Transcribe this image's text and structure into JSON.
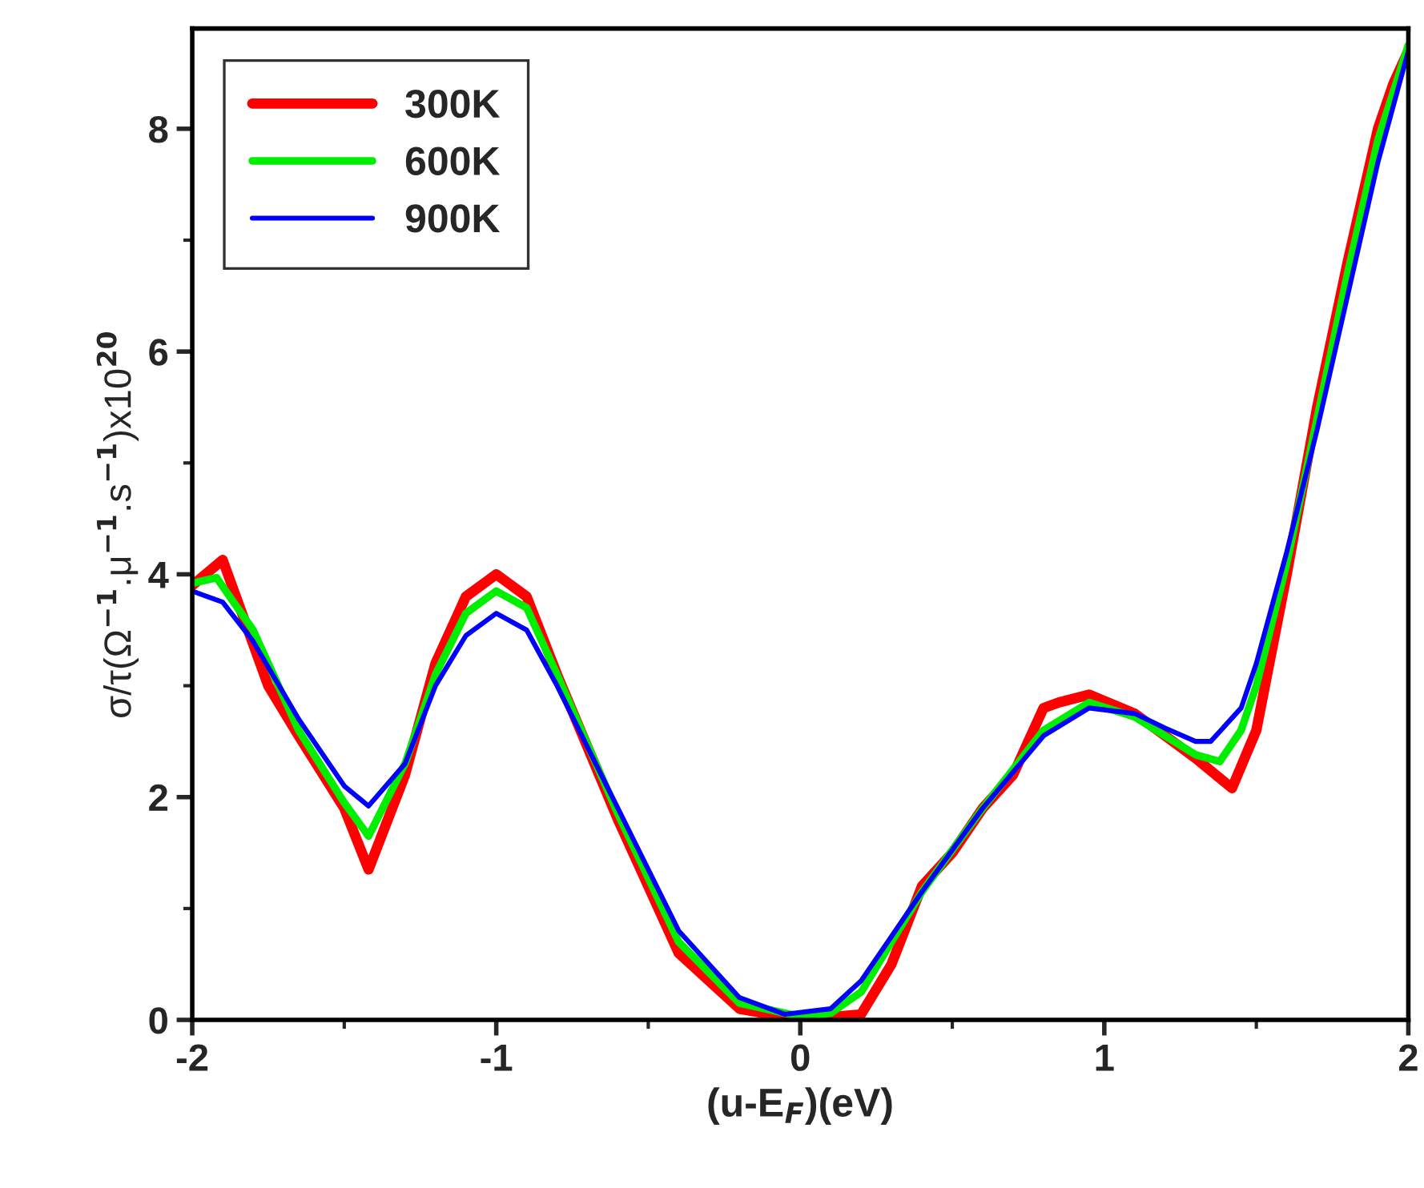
{
  "chart_data": {
    "type": "line",
    "xlabel": "(u-E$_{F}$)(eV)",
    "ylabel": "σ/τ(Ω$^{−1}$.μ$^{−1}$.s$^{−1}$)x10$^{20}$",
    "xlim": [
      -2,
      2
    ],
    "ylim": [
      0,
      8.9
    ],
    "xticks": [
      -2,
      -1,
      0,
      1,
      2
    ],
    "yticks": [
      0,
      2,
      4,
      6,
      8
    ],
    "legend": "top left",
    "grid": false,
    "line_style": "solid",
    "marker": "none",
    "series": [
      {
        "name": "300K",
        "color": "#ff0000",
        "x": [
          -2,
          -1.9,
          -1.75,
          -1.65,
          -1.5,
          -1.42,
          -1.3,
          -1.2,
          -1.1,
          -1.0,
          -0.9,
          -0.8,
          -0.6,
          -0.4,
          -0.2,
          0,
          0.2,
          0.3,
          0.4,
          0.5,
          0.6,
          0.7,
          0.8,
          0.85,
          0.95,
          1.1,
          1.2,
          1.3,
          1.42,
          1.5,
          1.6,
          1.7,
          1.8,
          1.9,
          1.95,
          2.0
        ],
        "values": [
          3.9,
          4.13,
          3.0,
          2.55,
          1.9,
          1.35,
          2.2,
          3.2,
          3.8,
          4.0,
          3.8,
          3.1,
          1.8,
          0.6,
          0.1,
          0.0,
          0.05,
          0.5,
          1.2,
          1.5,
          1.9,
          2.2,
          2.8,
          2.85,
          2.92,
          2.75,
          2.55,
          2.35,
          2.08,
          2.6,
          4.0,
          5.5,
          6.8,
          8.0,
          8.4,
          8.7
        ]
      },
      {
        "name": "600K",
        "color": "#00ee00",
        "x": [
          -2,
          -1.92,
          -1.8,
          -1.65,
          -1.5,
          -1.42,
          -1.3,
          -1.2,
          -1.1,
          -1.0,
          -0.9,
          -0.8,
          -0.6,
          -0.4,
          -0.2,
          0,
          0.1,
          0.2,
          0.3,
          0.4,
          0.6,
          0.8,
          0.95,
          1.1,
          1.2,
          1.3,
          1.38,
          1.45,
          1.5,
          1.6,
          1.7,
          1.8,
          1.9,
          2.0
        ],
        "values": [
          3.92,
          3.97,
          3.5,
          2.6,
          1.95,
          1.65,
          2.3,
          3.1,
          3.65,
          3.85,
          3.7,
          3.1,
          1.85,
          0.7,
          0.15,
          0.03,
          0.06,
          0.25,
          0.7,
          1.15,
          1.9,
          2.6,
          2.85,
          2.72,
          2.55,
          2.38,
          2.32,
          2.6,
          3.0,
          4.1,
          5.4,
          6.7,
          7.9,
          8.75
        ]
      },
      {
        "name": "900K",
        "color": "#0000ff",
        "x": [
          -2,
          -1.9,
          -1.8,
          -1.65,
          -1.5,
          -1.42,
          -1.3,
          -1.2,
          -1.1,
          -1.0,
          -0.9,
          -0.8,
          -0.6,
          -0.4,
          -0.2,
          -0.05,
          0.1,
          0.2,
          0.3,
          0.4,
          0.6,
          0.8,
          0.95,
          1.1,
          1.2,
          1.3,
          1.35,
          1.45,
          1.5,
          1.6,
          1.7,
          1.8,
          1.9,
          2.0
        ],
        "values": [
          3.85,
          3.75,
          3.4,
          2.7,
          2.1,
          1.92,
          2.3,
          3.0,
          3.45,
          3.65,
          3.5,
          3.0,
          1.9,
          0.8,
          0.2,
          0.05,
          0.1,
          0.35,
          0.75,
          1.15,
          1.9,
          2.55,
          2.8,
          2.75,
          2.62,
          2.5,
          2.5,
          2.8,
          3.2,
          4.2,
          5.3,
          6.5,
          7.7,
          8.7
        ]
      }
    ]
  }
}
